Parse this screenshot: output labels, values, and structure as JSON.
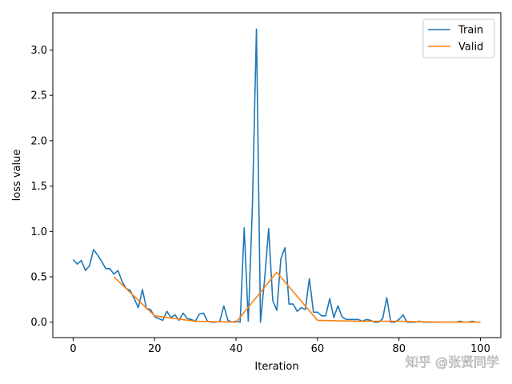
{
  "chart_data": {
    "type": "line",
    "xlabel": "Iteration",
    "ylabel": "loss value",
    "xlim": [
      -5,
      105
    ],
    "ylim": [
      -0.17,
      3.41
    ],
    "xticks": [
      0,
      20,
      40,
      60,
      80,
      100
    ],
    "yticks": [
      0.0,
      0.5,
      1.0,
      1.5,
      2.0,
      2.5,
      3.0
    ],
    "xtick_labels": [
      "0",
      "20",
      "40",
      "60",
      "80",
      "100"
    ],
    "ytick_labels": [
      "0.0",
      "0.5",
      "1.0",
      "1.5",
      "2.0",
      "2.5",
      "3.0"
    ],
    "grid": false,
    "legend_position": "top-right",
    "series": [
      {
        "name": "Train",
        "color": "#1f77b4",
        "x": [
          0,
          1,
          2,
          3,
          4,
          5,
          6,
          7,
          8,
          9,
          10,
          11,
          12,
          13,
          14,
          15,
          16,
          17,
          18,
          19,
          20,
          21,
          22,
          23,
          24,
          25,
          26,
          27,
          28,
          29,
          30,
          31,
          32,
          33,
          34,
          35,
          36,
          37,
          38,
          39,
          40,
          41,
          42,
          43,
          44,
          45,
          46,
          47,
          48,
          49,
          50,
          51,
          52,
          53,
          54,
          55,
          56,
          57,
          58,
          59,
          60,
          61,
          62,
          63,
          64,
          65,
          66,
          67,
          68,
          69,
          70,
          71,
          72,
          73,
          74,
          75,
          76,
          77,
          78,
          79,
          80,
          81,
          82,
          83,
          84,
          85,
          86,
          87,
          88,
          89,
          90,
          91,
          92,
          93,
          94,
          95,
          96,
          97,
          98,
          99,
          100
        ],
        "y": [
          0.69,
          0.64,
          0.68,
          0.57,
          0.62,
          0.8,
          0.74,
          0.67,
          0.59,
          0.59,
          0.53,
          0.57,
          0.45,
          0.37,
          0.35,
          0.26,
          0.16,
          0.36,
          0.15,
          0.14,
          0.06,
          0.04,
          0.02,
          0.12,
          0.05,
          0.08,
          0.02,
          0.1,
          0.04,
          0.03,
          0.01,
          0.09,
          0.1,
          0.01,
          0.0,
          0.0,
          0.01,
          0.18,
          0.02,
          0.0,
          0.01,
          0.0,
          1.04,
          0.01,
          1.26,
          3.23,
          0.0,
          0.47,
          1.03,
          0.24,
          0.13,
          0.7,
          0.82,
          0.2,
          0.2,
          0.12,
          0.16,
          0.14,
          0.48,
          0.11,
          0.11,
          0.07,
          0.07,
          0.26,
          0.05,
          0.18,
          0.06,
          0.03,
          0.03,
          0.03,
          0.03,
          0.01,
          0.03,
          0.02,
          0.0,
          0.0,
          0.04,
          0.27,
          0.0,
          0.0,
          0.03,
          0.08,
          0.0,
          0.0,
          0.0,
          0.01,
          0.0,
          0.0,
          0.0,
          0.0,
          0.0,
          0.0,
          0.0,
          0.0,
          0.0,
          0.01,
          0.0,
          0.0,
          0.01,
          0.0,
          0.0
        ]
      },
      {
        "name": "Valid",
        "color": "#ff7f0e",
        "x": [
          10,
          20,
          30,
          40,
          50,
          60,
          70,
          80,
          90,
          100
        ],
        "y": [
          0.5,
          0.07,
          0.01,
          0.0,
          0.55,
          0.02,
          0.01,
          0.01,
          0.0,
          0.0
        ]
      }
    ]
  },
  "watermark": "知乎 @张贤同学"
}
